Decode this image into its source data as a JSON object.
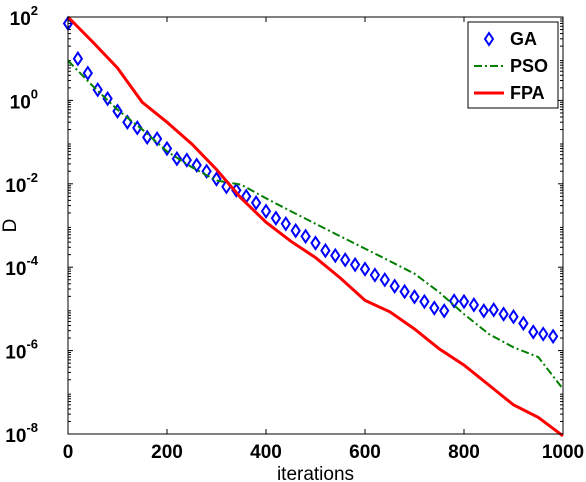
{
  "chart_data": {
    "type": "line",
    "xlabel": "iterations",
    "ylabel": "D",
    "xlim": [
      0,
      1000
    ],
    "ylim": [
      1e-08,
      100
    ],
    "yscale": "log",
    "x_ticks": [
      "0",
      "200",
      "400",
      "600",
      "800",
      "1000"
    ],
    "x_tick_values": [
      0,
      200,
      400,
      600,
      800,
      1000
    ],
    "y_ticks": [
      {
        "base": "10",
        "exp": "-8",
        "value": 1e-08
      },
      {
        "base": "10",
        "exp": "-6",
        "value": 1e-06
      },
      {
        "base": "10",
        "exp": "-4",
        "value": 0.0001
      },
      {
        "base": "10",
        "exp": "-2",
        "value": 0.01
      },
      {
        "base": "10",
        "exp": "0",
        "value": 1
      },
      {
        "base": "10",
        "exp": "2",
        "value": 100
      }
    ],
    "grid": false,
    "legend_position": "top-right",
    "series": [
      {
        "name": "GA",
        "color": "#0000ff",
        "style": "diamond-markers",
        "x": [
          0,
          20,
          40,
          60,
          80,
          100,
          120,
          140,
          160,
          180,
          200,
          220,
          240,
          260,
          280,
          300,
          320,
          340,
          360,
          380,
          400,
          420,
          440,
          460,
          480,
          500,
          520,
          540,
          560,
          580,
          600,
          620,
          640,
          660,
          680,
          700,
          720,
          740,
          760,
          780,
          800,
          820,
          840,
          860,
          880,
          900,
          920,
          940,
          960,
          980
        ],
        "y": [
          70,
          10,
          4.5,
          1.8,
          1.1,
          0.55,
          0.3,
          0.22,
          0.13,
          0.12,
          0.07,
          0.04,
          0.037,
          0.028,
          0.02,
          0.013,
          0.0085,
          0.007,
          0.005,
          0.0035,
          0.0022,
          0.0015,
          0.0011,
          0.00075,
          0.00055,
          0.00038,
          0.00025,
          0.00019,
          0.00015,
          0.000115,
          9e-05,
          6.5e-05,
          5e-05,
          3.5e-05,
          2.6e-05,
          1.95e-05,
          1.5e-05,
          1.05e-05,
          9e-06,
          1.55e-05,
          1.5e-05,
          1.25e-05,
          9e-06,
          9.5e-06,
          7.5e-06,
          6.5e-06,
          4.5e-06,
          2.8e-06,
          2.5e-06,
          2.2e-06
        ]
      },
      {
        "name": "PSO",
        "color": "#007f00",
        "style": "dash-dot",
        "x": [
          0,
          50,
          100,
          150,
          200,
          250,
          300,
          350,
          400,
          450,
          500,
          550,
          600,
          650,
          700,
          750,
          800,
          850,
          900,
          950,
          1000
        ],
        "y": [
          9,
          2.2,
          0.6,
          0.2,
          0.06,
          0.025,
          0.012,
          0.0095,
          0.0045,
          0.0022,
          0.0011,
          0.00055,
          0.00028,
          0.00014,
          7e-05,
          2.5e-05,
          7.5e-06,
          2.5e-06,
          1.2e-06,
          7e-07,
          1.2e-07
        ]
      },
      {
        "name": "FPA",
        "color": "#ff0000",
        "style": "solid",
        "x": [
          0,
          50,
          100,
          150,
          200,
          250,
          300,
          350,
          400,
          450,
          500,
          550,
          600,
          650,
          700,
          750,
          800,
          850,
          900,
          950,
          1000
        ],
        "y": [
          100,
          25,
          6,
          0.9,
          0.3,
          0.09,
          0.022,
          0.0045,
          0.0012,
          0.00042,
          0.00017,
          5.5e-05,
          1.6e-05,
          8.5e-06,
          3.3e-06,
          1.1e-06,
          4.5e-07,
          1.5e-07,
          5e-08,
          2.5e-08,
          9e-09
        ]
      }
    ]
  }
}
